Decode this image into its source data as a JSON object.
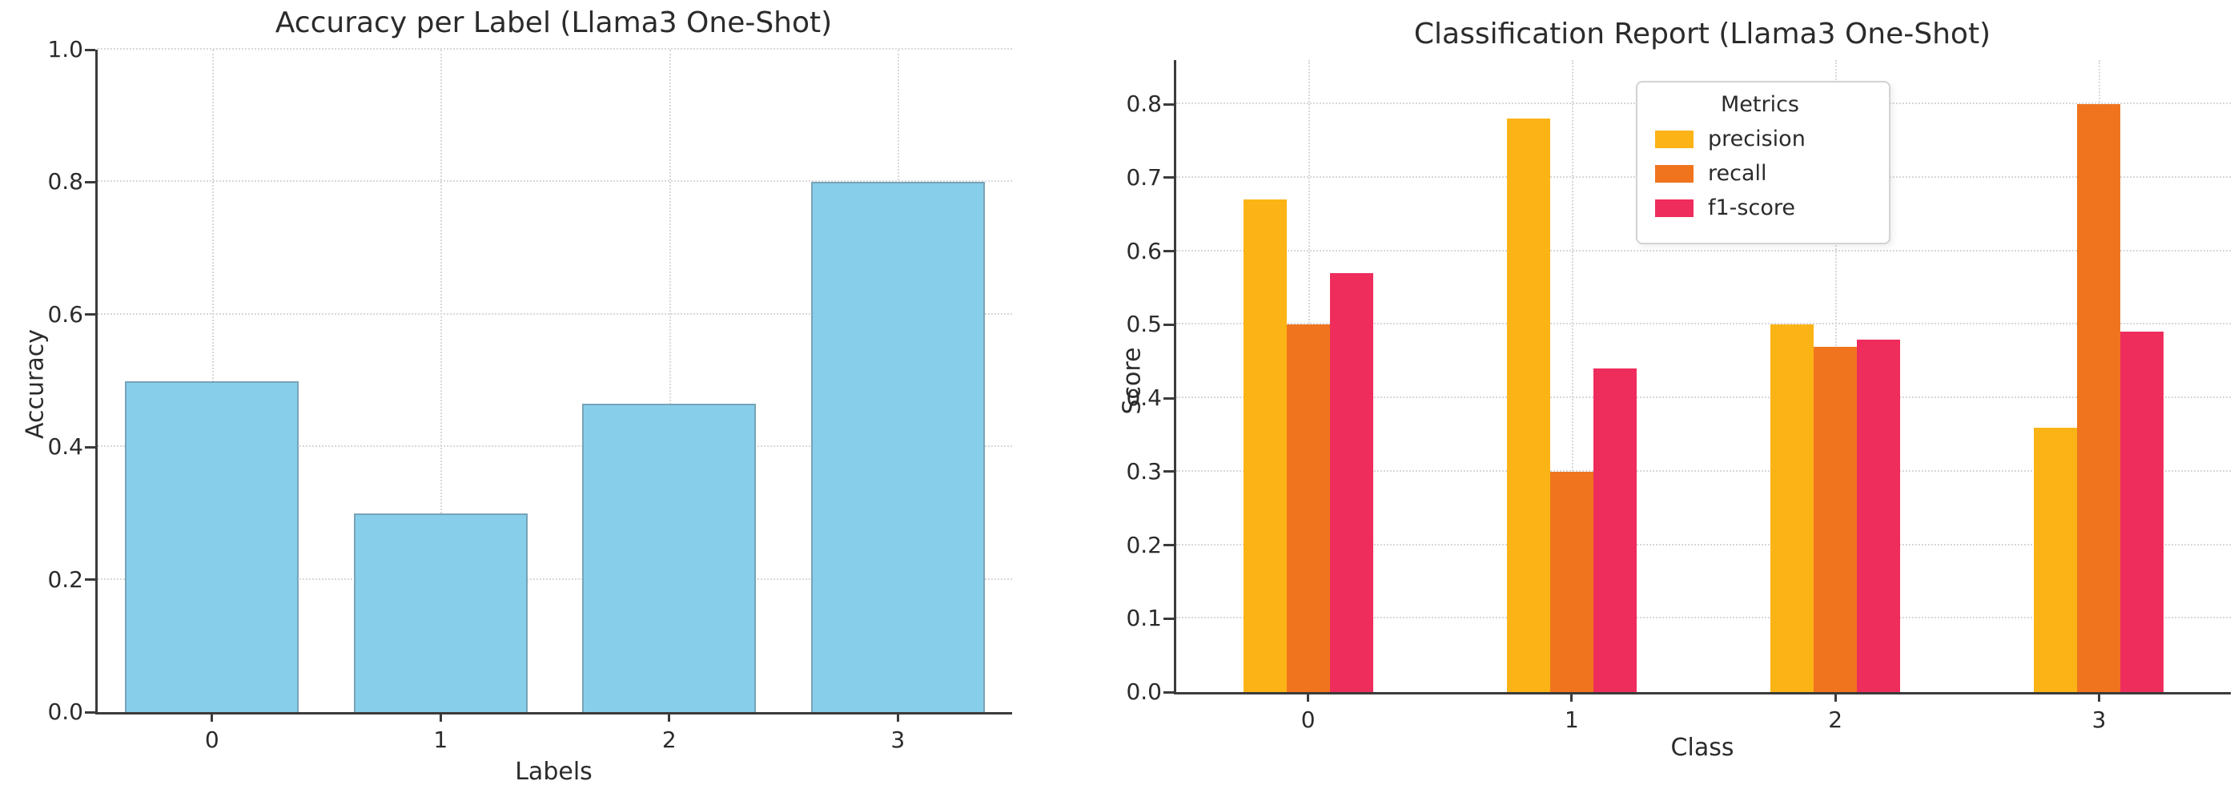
{
  "page": {
    "background": "#ffffff"
  },
  "chart_data": [
    {
      "type": "bar",
      "title": "Accuracy per Label (Llama3 One-Shot)",
      "xlabel": "Labels",
      "ylabel": "Accuracy",
      "categories": [
        "0",
        "1",
        "2",
        "3"
      ],
      "values": [
        0.5,
        0.3,
        0.465,
        0.8
      ],
      "ylim": [
        0,
        1.0
      ],
      "yticks": [
        0,
        0.2,
        0.4,
        0.6,
        0.8,
        1.0
      ],
      "ytick_decimals": 1,
      "bar_color": "#87CEEB",
      "bar_edge_color": "rgba(100,110,120,0.45)",
      "grid": true,
      "grid_color": "#d8d8d8",
      "legend_position": "none"
    },
    {
      "type": "bar",
      "title": "Classification Report (Llama3 One-Shot)",
      "xlabel": "Class",
      "ylabel": "Score",
      "categories": [
        "0",
        "1",
        "2",
        "3"
      ],
      "series": [
        {
          "name": "precision",
          "color": "#FCB316",
          "values": [
            0.67,
            0.78,
            0.5,
            0.36
          ]
        },
        {
          "name": "recall",
          "color": "#F0741E",
          "values": [
            0.5,
            0.3,
            0.47,
            0.8
          ]
        },
        {
          "name": "f1-score",
          "color": "#EE2D5C",
          "values": [
            0.57,
            0.44,
            0.48,
            0.49
          ]
        }
      ],
      "ylim": [
        0,
        0.86
      ],
      "yticks": [
        0,
        0.1,
        0.2,
        0.3,
        0.4,
        0.5,
        0.6,
        0.7,
        0.8
      ],
      "ytick_decimals": 1,
      "legend": {
        "title": "Metrics",
        "position": "upper center"
      },
      "grid": true,
      "grid_color": "#d8d8d8"
    }
  ]
}
